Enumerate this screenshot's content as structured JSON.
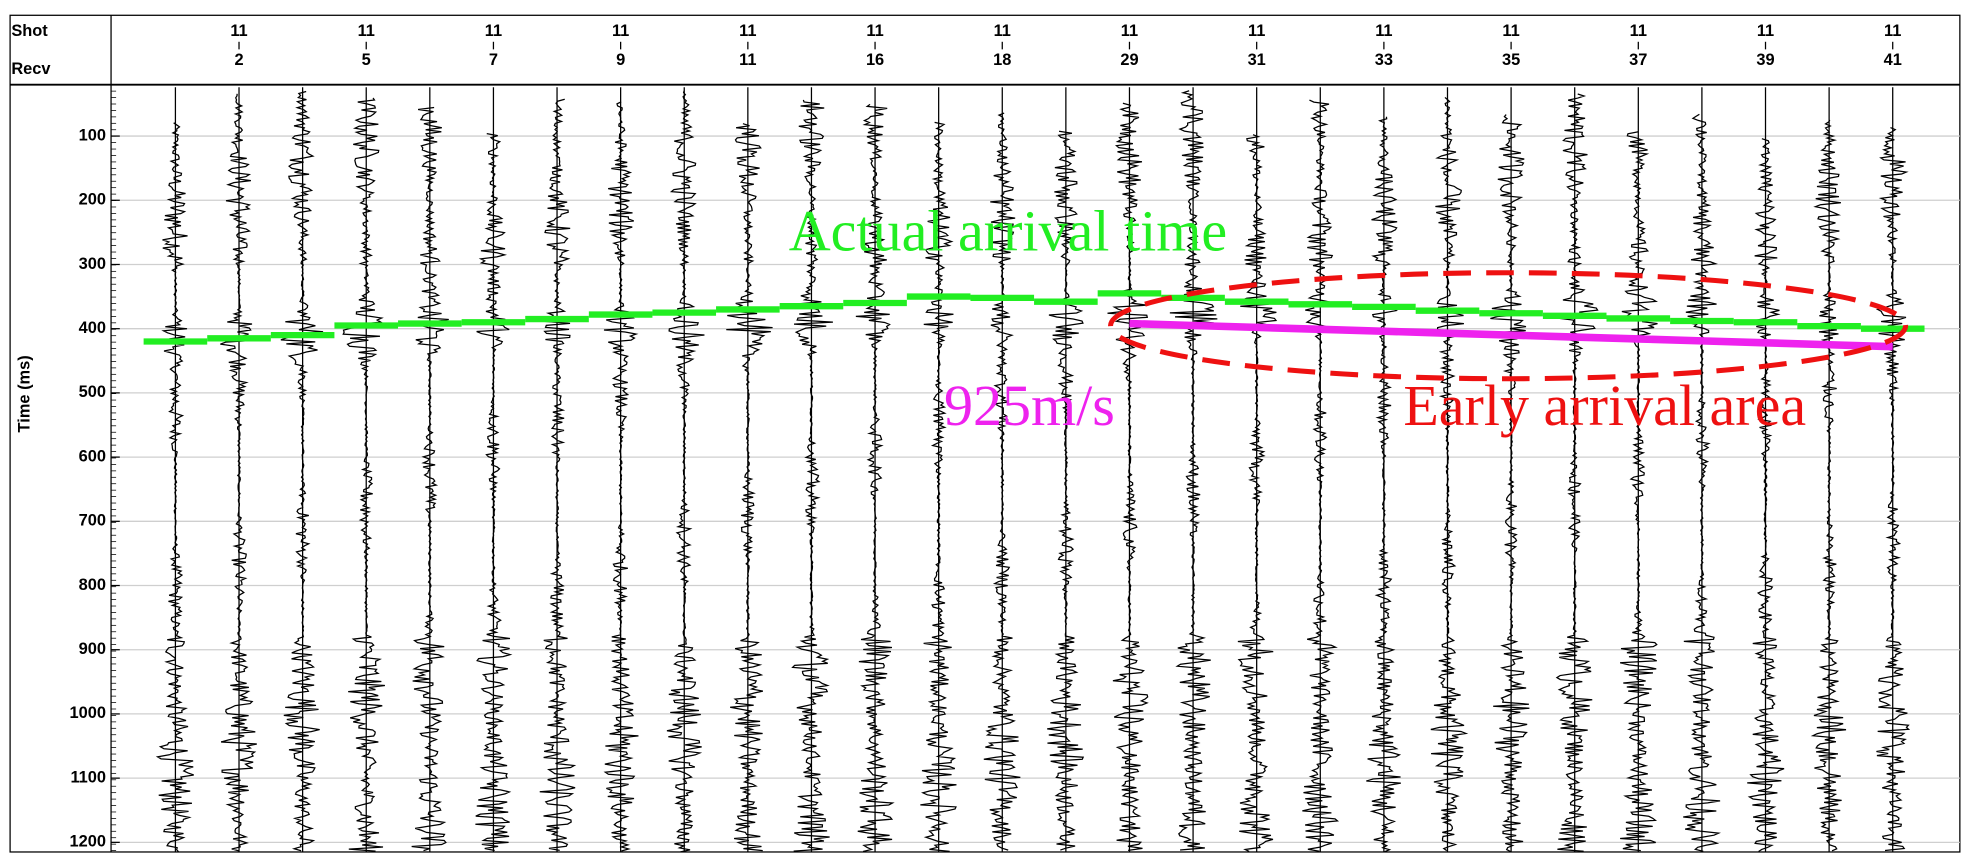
{
  "chart_data": {
    "type": "wiggle",
    "header_labels": [
      "Shot",
      "Recv"
    ],
    "shot": [
      null,
      11,
      null,
      11,
      null,
      11,
      null,
      11,
      null,
      11,
      null,
      11,
      null,
      11,
      null,
      11,
      null,
      11,
      null,
      11,
      null,
      11,
      null,
      11,
      null,
      11,
      null,
      11
    ],
    "categories": [
      null,
      2,
      null,
      5,
      null,
      7,
      null,
      9,
      null,
      11,
      null,
      16,
      null,
      18,
      null,
      29,
      null,
      31,
      null,
      33,
      null,
      35,
      null,
      37,
      null,
      39,
      null,
      41
    ],
    "ylabel": "Time (ms)",
    "ylim": [
      20,
      1215
    ],
    "yticks": [
      100,
      200,
      300,
      400,
      500,
      600,
      700,
      800,
      900,
      1000,
      1100,
      1200
    ],
    "grid": true,
    "series": [
      {
        "name": "Actual arrival time",
        "color": "#22ee22",
        "values": [
          420,
          415,
          410,
          395,
          392,
          390,
          385,
          378,
          375,
          370,
          365,
          360,
          350,
          352,
          358,
          345,
          352,
          358,
          362,
          366,
          372,
          376,
          380,
          384,
          388,
          390,
          396,
          400
        ]
      },
      {
        "name": "925m/s",
        "color": "#ee22ee",
        "values": [
          null,
          null,
          null,
          null,
          null,
          null,
          null,
          null,
          null,
          null,
          null,
          null,
          null,
          null,
          null,
          392,
          395,
          398,
          401,
          404,
          407,
          410,
          413,
          416,
          419,
          422,
          425,
          428
        ]
      }
    ],
    "annotations": [
      {
        "text": "Early arrival area",
        "color": "#ee1111"
      }
    ]
  }
}
